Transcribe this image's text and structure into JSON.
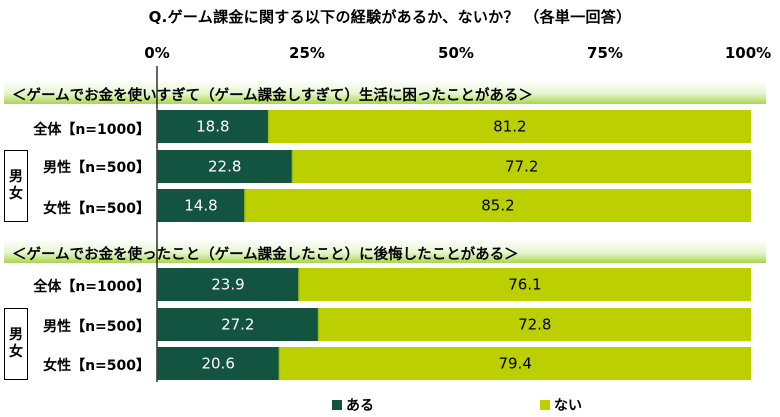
{
  "chart_data": {
    "type": "bar",
    "orientation": "horizontal-stacked-100",
    "title": "Q.ゲーム課金に関する以下の経験があるか、ないか？ （各単一回答）",
    "x_ticks": [
      "0%",
      "25%",
      "50%",
      "75%",
      "100%"
    ],
    "xlim": [
      0,
      100
    ],
    "colors": {
      "aru": "#135440",
      "nai": "#bccf00",
      "divider": "#9ec000",
      "header_band": "#a6d84c"
    },
    "series_names": [
      "ある",
      "ない"
    ],
    "legend_position": "bottom",
    "sections": [
      {
        "title": "＜ゲームでお金を使いすぎて（ゲーム課金しすぎて）生活に困ったことがある＞",
        "rows": [
          {
            "label": "全体【n=1000】",
            "values": [
              18.8,
              81.2
            ],
            "value_labels": [
              "18.8",
              "81.2"
            ]
          },
          {
            "label": "男性【n=500】",
            "values": [
              22.8,
              77.2
            ],
            "value_labels": [
              "22.8",
              "77.2"
            ]
          },
          {
            "label": "女性【n=500】",
            "values": [
              14.8,
              85.2
            ],
            "value_labels": [
              "14.8",
              "85.2"
            ]
          }
        ],
        "group_label": [
          "男",
          "女"
        ]
      },
      {
        "title": "＜ゲームでお金を使ったこと（ゲーム課金したこと）に後悔したことがある＞",
        "rows": [
          {
            "label": "全体【n=1000】",
            "values": [
              23.9,
              76.1
            ],
            "value_labels": [
              "23.9",
              "76.1"
            ]
          },
          {
            "label": "男性【n=500】",
            "values": [
              27.2,
              72.8
            ],
            "value_labels": [
              "27.2",
              "72.8"
            ]
          },
          {
            "label": "女性【n=500】",
            "values": [
              20.6,
              79.4
            ],
            "value_labels": [
              "20.6",
              "79.4"
            ]
          }
        ],
        "group_label": [
          "男",
          "女"
        ]
      }
    ]
  }
}
